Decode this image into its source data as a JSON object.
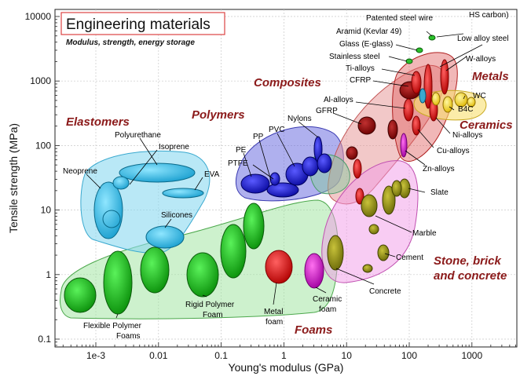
{
  "chart_data": {
    "type": "scatter",
    "xscale": "log",
    "yscale": "log",
    "title": "Engineering materials",
    "subtitle": "Modulus, strength, energy storage",
    "xlabel": "Young's modulus (GPa)",
    "ylabel": "Tensile strength (MPa)",
    "xlim": [
      0.0001,
      5000
    ],
    "ylim": [
      0.07,
      12000
    ],
    "grid": true,
    "x_tick_labels": [
      "1e-3",
      "0.01",
      "0.1",
      "1",
      "10",
      "100",
      "1000"
    ],
    "y_tick_labels": [
      "0.1",
      "1",
      "10",
      "100",
      "1000",
      "10000"
    ],
    "colors": {
      "polymer_blue": "#1212c8",
      "elastomer_cyan": "#20b4e0",
      "foam_green": "#14b414",
      "metal_red": "#e00000",
      "ceramic_yellow": "#ffe000",
      "stone_olive": "#8a8a10",
      "composite_darkred": "#8b0000",
      "magenta": "#d010c0",
      "family_label": "#8b1a1a"
    },
    "families": [
      {
        "name": "Elastomers"
      },
      {
        "name": "Polymers"
      },
      {
        "name": "Composites"
      },
      {
        "name": "Metals"
      },
      {
        "name": "Ceramics"
      },
      {
        "name": "Foams"
      },
      {
        "name": "Stone, brick"
      },
      {
        "name": "and concrete"
      }
    ],
    "materials": [
      {
        "label": "Polyurethane",
        "x": 0.006,
        "y": 24,
        "series": "elastomer"
      },
      {
        "label": "Isoprene",
        "x": 0.003,
        "y": 22,
        "series": "elastomer"
      },
      {
        "label": "Neoprene",
        "x": 0.0012,
        "y": 9,
        "series": "elastomer"
      },
      {
        "label": "EVA",
        "x": 0.025,
        "y": 18,
        "series": "elastomer"
      },
      {
        "label": "Silicones",
        "x": 0.007,
        "y": 4.2,
        "series": "elastomer"
      },
      {
        "label": "PE",
        "x": 0.7,
        "y": 25,
        "series": "polymer"
      },
      {
        "label": "PP",
        "x": 1.4,
        "y": 30,
        "series": "polymer"
      },
      {
        "label": "PVC",
        "x": 2.5,
        "y": 45,
        "series": "polymer"
      },
      {
        "label": "Nylons",
        "x": 3,
        "y": 90,
        "series": "polymer"
      },
      {
        "label": "PTFE",
        "x": 0.5,
        "y": 22,
        "series": "polymer"
      },
      {
        "label": "GFRP",
        "x": 20,
        "y": 200,
        "series": "composite"
      },
      {
        "label": "CFRP",
        "x": 85,
        "y": 800,
        "series": "composite"
      },
      {
        "label": "Al-alloys",
        "x": 70,
        "y": 300,
        "series": "metal"
      },
      {
        "label": "Ti-alloys",
        "x": 110,
        "y": 900,
        "series": "metal"
      },
      {
        "label": "Stainless steel",
        "x": 200,
        "y": 700,
        "series": "metal"
      },
      {
        "label": "Low alloy steel",
        "x": 210,
        "y": 1200,
        "series": "metal"
      },
      {
        "label": "W-alloys",
        "x": 380,
        "y": 1000,
        "series": "metal"
      },
      {
        "label": "Ni-alloys",
        "x": 200,
        "y": 500,
        "series": "metal"
      },
      {
        "label": "Cu-alloys",
        "x": 120,
        "y": 300,
        "series": "metal"
      },
      {
        "label": "Zn-alloys",
        "x": 90,
        "y": 180,
        "series": "metal"
      },
      {
        "label": "WC",
        "x": 600,
        "y": 500,
        "series": "ceramic"
      },
      {
        "label": "B4C",
        "x": 450,
        "y": 350,
        "series": "ceramic"
      },
      {
        "label": "Patented steel wire",
        "x": 210,
        "y": 2500,
        "series": "metal"
      },
      {
        "label": "HS carbon)",
        "x": 220,
        "y": 2200,
        "series": "metal"
      },
      {
        "label": "Aramid (Kevlar 49)",
        "x": 120,
        "y": 3000,
        "series": "fibre"
      },
      {
        "label": "Glass (E-glass)",
        "x": 72,
        "y": 2000,
        "series": "fibre"
      },
      {
        "label": "Slate",
        "x": 70,
        "y": 30,
        "series": "stone"
      },
      {
        "label": "Marble",
        "x": 50,
        "y": 15,
        "series": "stone"
      },
      {
        "label": "Cement",
        "x": 30,
        "y": 2.5,
        "series": "stone"
      },
      {
        "label": "Concrete",
        "x": 25,
        "y": 1.5,
        "series": "stone"
      },
      {
        "label": "Metal",
        "x": 0.8,
        "y": 1.3,
        "series": "foam"
      },
      {
        "label": "foam",
        "x": 0.8,
        "y": 1.3,
        "series": "foam"
      },
      {
        "label": "Ceramic",
        "x": 3,
        "y": 1.1,
        "series": "foam"
      },
      {
        "label": "foam",
        "x": 3,
        "y": 1.1,
        "series": "foam"
      },
      {
        "label": "Flexible Polymer",
        "x": 0.002,
        "y": 1.0,
        "series": "foam"
      },
      {
        "label": "Foams",
        "x": 0.002,
        "y": 1.0,
        "series": "foam"
      },
      {
        "label": "Rigid Polymer",
        "x": 0.05,
        "y": 1.1,
        "series": "foam"
      },
      {
        "label": "Foam",
        "x": 0.05,
        "y": 1.1,
        "series": "foam"
      }
    ]
  }
}
